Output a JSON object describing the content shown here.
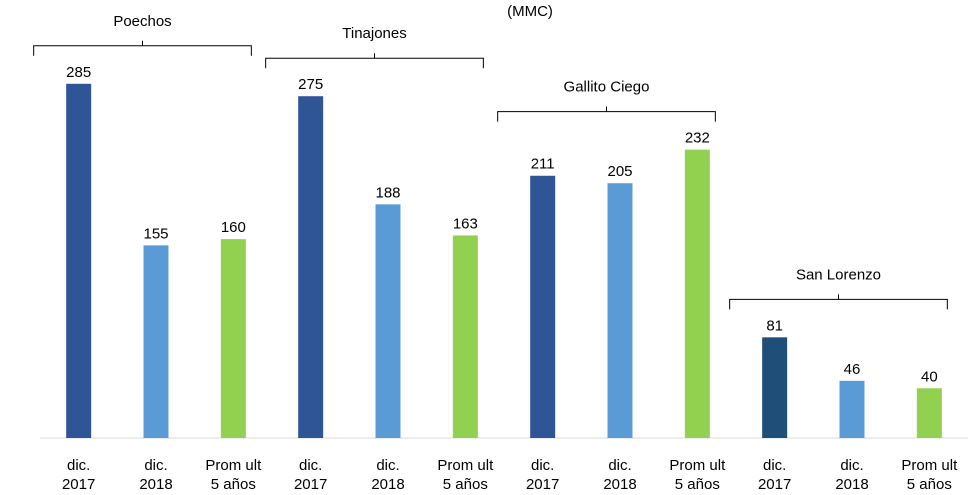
{
  "chart_data": {
    "type": "bar",
    "title": "(MMC)",
    "categories": [
      [
        "dic.",
        "2017"
      ],
      [
        "dic.",
        "2018"
      ],
      [
        "Prom ult",
        "5 años"
      ]
    ],
    "series": [
      {
        "name": "Poechos",
        "colors": [
          "#2f5597",
          "#5b9bd5",
          "#92d050"
        ],
        "values": [
          285,
          155,
          160
        ]
      },
      {
        "name": "Tinajones",
        "colors": [
          "#2f5597",
          "#5b9bd5",
          "#92d050"
        ],
        "values": [
          275,
          188,
          163
        ]
      },
      {
        "name": "Gallito  Ciego",
        "colors": [
          "#2f5597",
          "#5b9bd5",
          "#92d050"
        ],
        "values": [
          211,
          205,
          232
        ]
      },
      {
        "name": "San Lorenzo",
        "colors": [
          "#1f4e79",
          "#5b9bd5",
          "#92d050"
        ],
        "values": [
          81,
          46,
          40
        ]
      }
    ],
    "ylim": [
      0,
      350
    ]
  }
}
